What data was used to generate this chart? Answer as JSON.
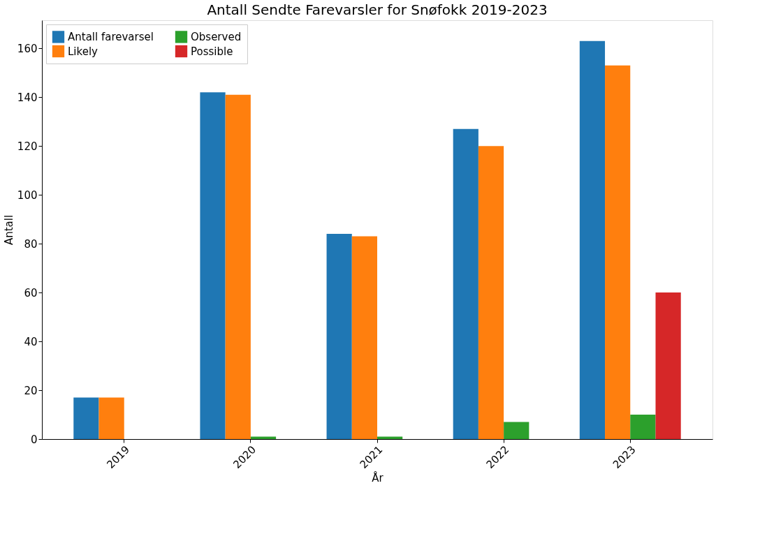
{
  "chart_data": {
    "type": "bar",
    "title": "Antall Sendte Farevarsler for Snøfokk 2019-2023",
    "xlabel": "År",
    "ylabel": "Antall",
    "categories": [
      "2019",
      "2020",
      "2021",
      "2022",
      "2023"
    ],
    "series": [
      {
        "name": "Antall farevarsel",
        "color": "#1f77b4",
        "values": [
          17,
          142,
          84,
          127,
          163
        ]
      },
      {
        "name": "Likely",
        "color": "#ff7f0e",
        "values": [
          17,
          141,
          83,
          120,
          153
        ]
      },
      {
        "name": "Observed",
        "color": "#2ca02c",
        "values": [
          0,
          1,
          1,
          7,
          10
        ]
      },
      {
        "name": "Possible",
        "color": "#d62728",
        "values": [
          0,
          0,
          0,
          0,
          60
        ]
      }
    ],
    "ylim": [
      0,
      171.5
    ],
    "yticks": [
      0,
      20,
      40,
      60,
      80,
      100,
      120,
      140,
      160
    ],
    "grid": false,
    "legend": "top left"
  }
}
